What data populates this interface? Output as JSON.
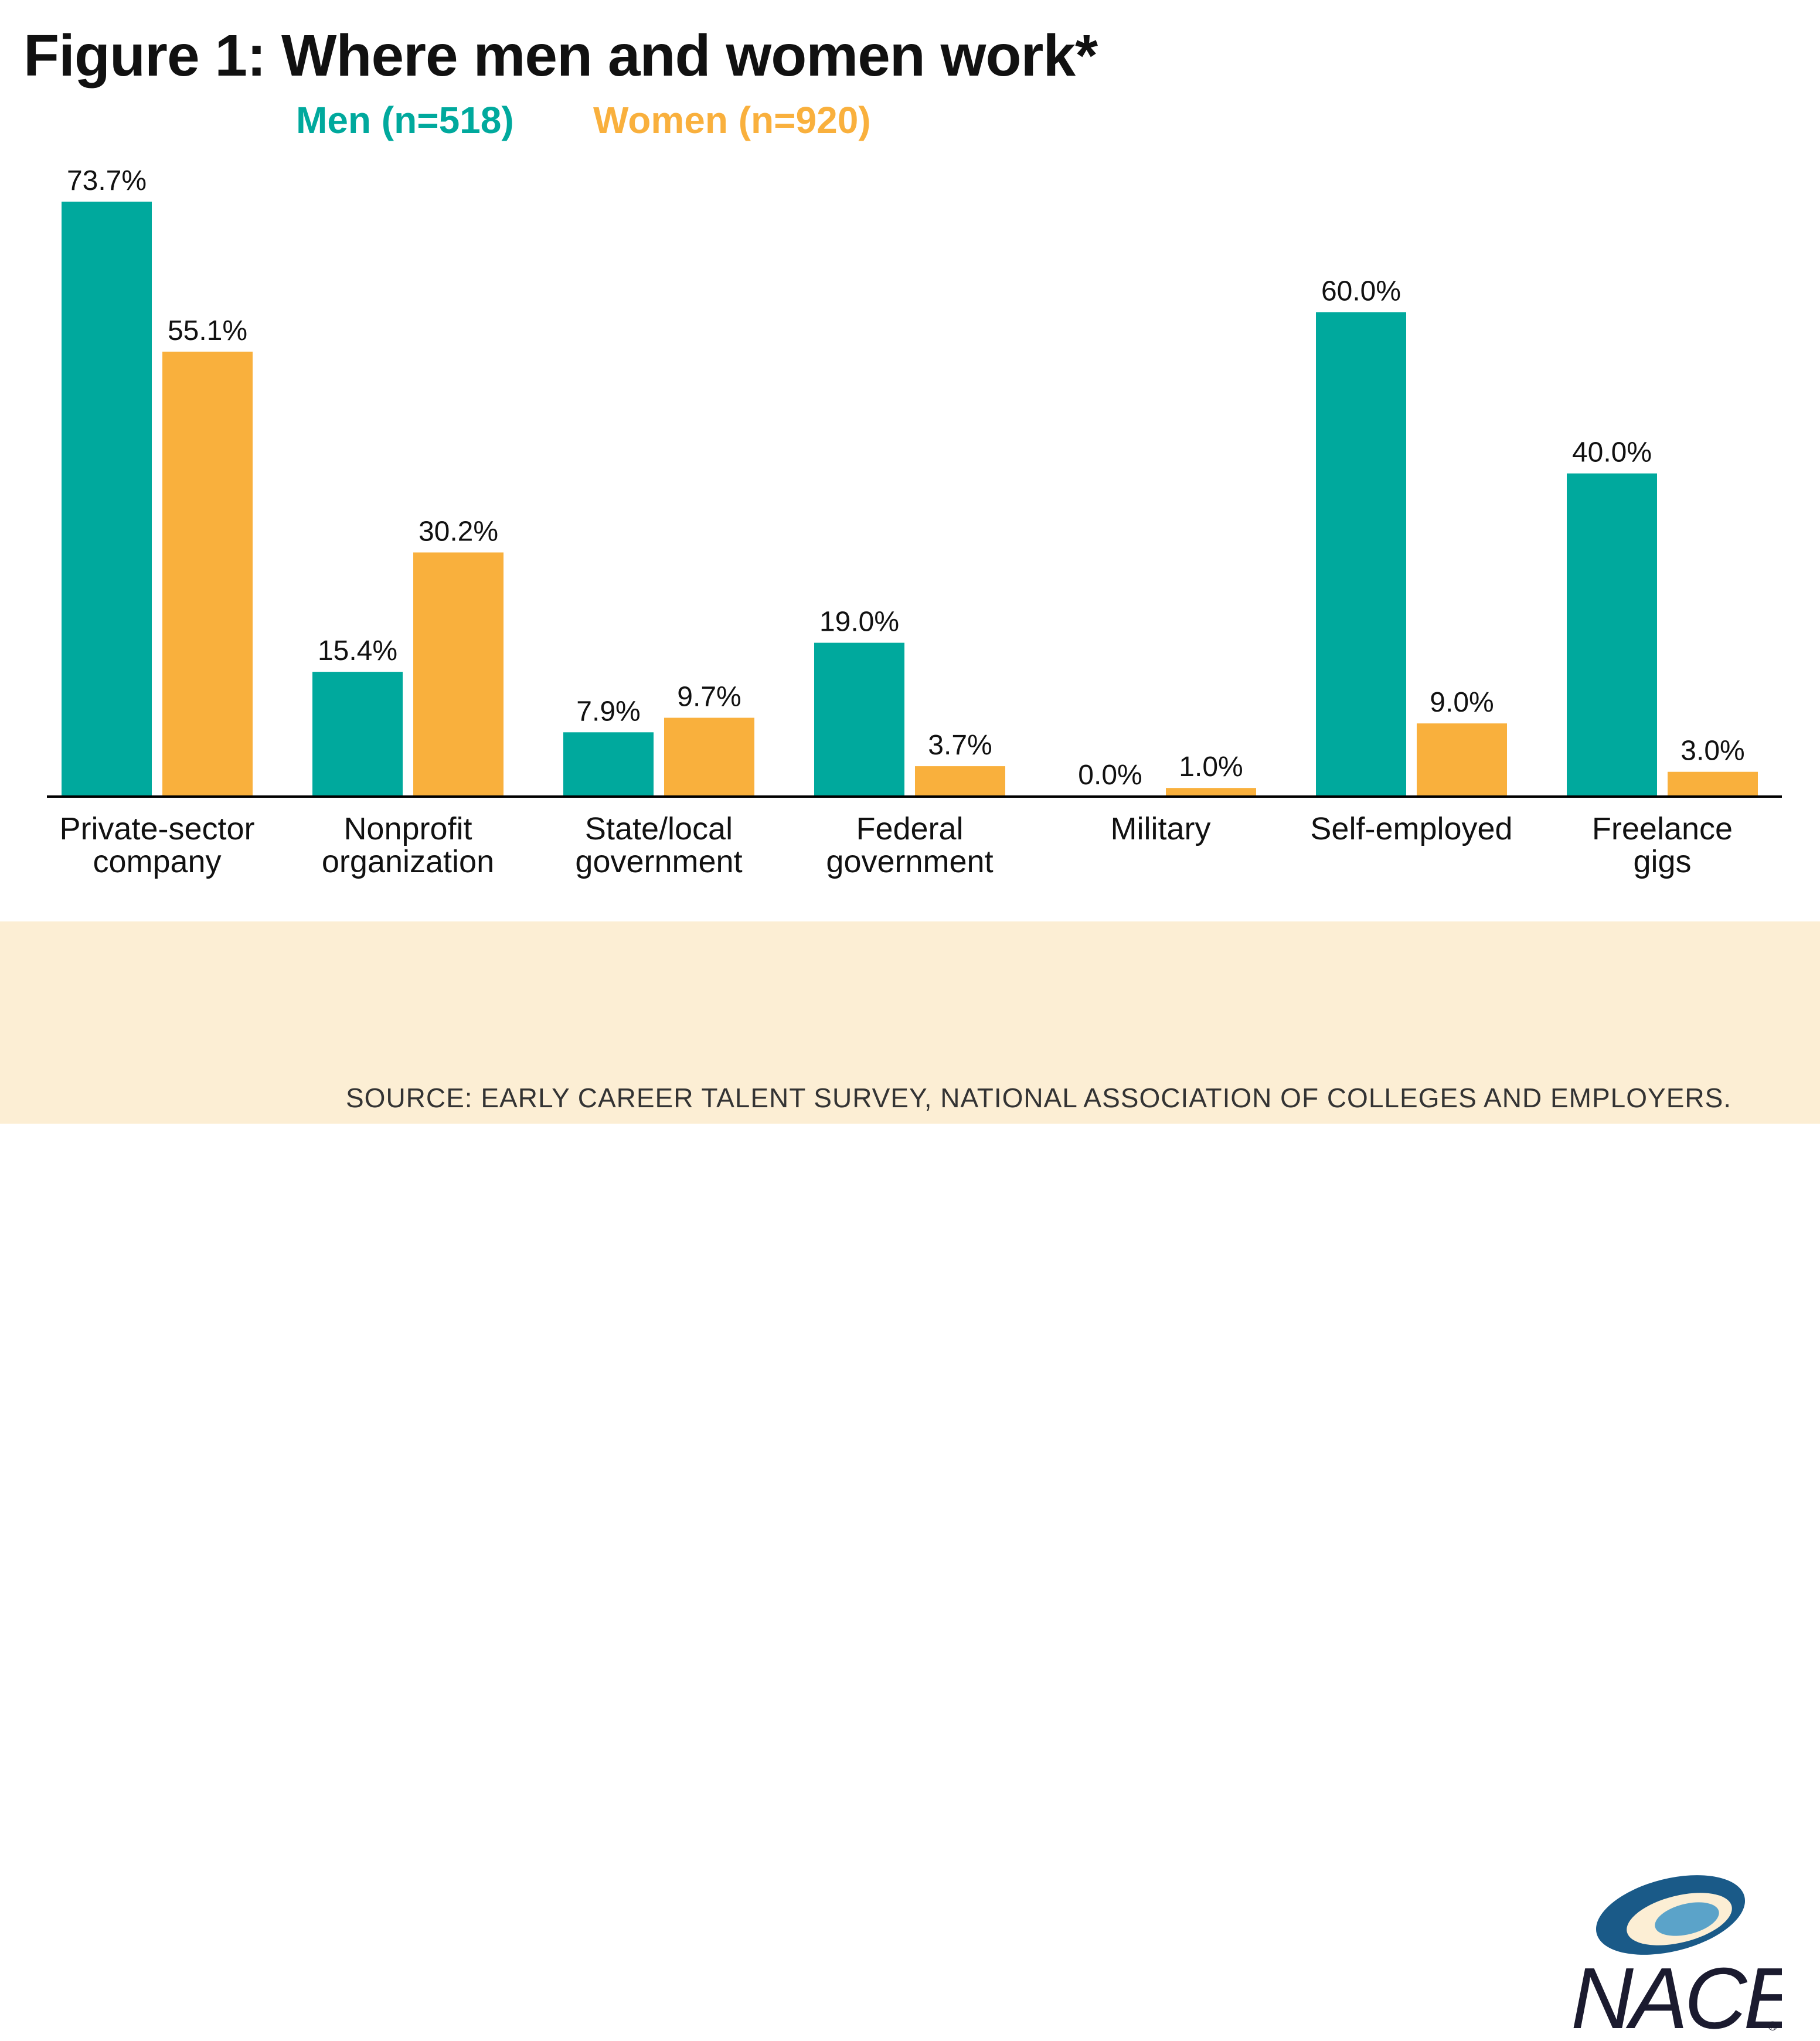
{
  "title": "Figure 1: Where men and women work*",
  "colors": {
    "men": "#00a99d",
    "women": "#f9b03d",
    "axis": "#000000",
    "footer_bg": "#fceed4"
  },
  "chart_data": {
    "type": "bar",
    "title": "Figure 1: Where men and women work*",
    "categories": [
      [
        "Private-sector",
        "company"
      ],
      [
        "Nonprofit",
        "organization"
      ],
      [
        "State/local",
        "government"
      ],
      [
        "Federal",
        "government"
      ],
      [
        "Military"
      ],
      [
        "Self-employed"
      ],
      [
        "Freelance",
        "gigs"
      ]
    ],
    "series": [
      {
        "name": "Men (n=518)",
        "color": "#00a99d",
        "values": [
          73.7,
          15.4,
          7.9,
          19.0,
          0.0,
          60.0,
          40.0
        ]
      },
      {
        "name": "Women (n=920)",
        "color": "#f9b03d",
        "values": [
          55.1,
          30.2,
          9.7,
          3.7,
          1.0,
          9.0,
          3.0
        ]
      }
    ],
    "value_suffix": "%",
    "ylim": [
      0,
      73.7
    ],
    "grid": false,
    "legend": "top-left"
  },
  "footer": {
    "source": "SOURCE: EARLY CAREER TALENT SURVEY, NATIONAL ASSOCIATION OF COLLEGES AND EMPLOYERS.",
    "logo_text": "NACE",
    "logo_mark": "®"
  }
}
